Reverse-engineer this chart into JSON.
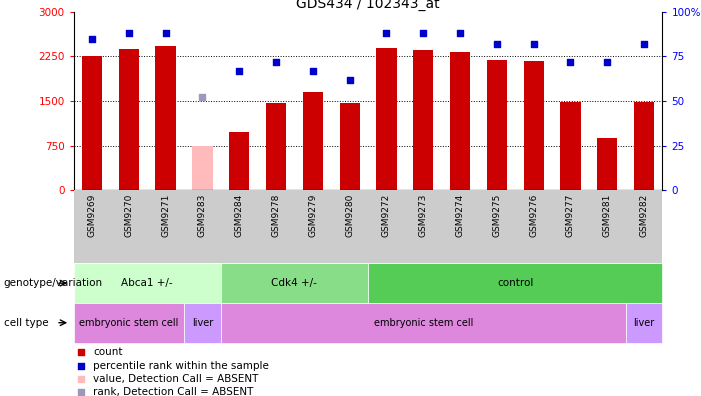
{
  "title": "GDS434 / 102343_at",
  "samples": [
    "GSM9269",
    "GSM9270",
    "GSM9271",
    "GSM9283",
    "GSM9284",
    "GSM9278",
    "GSM9279",
    "GSM9280",
    "GSM9272",
    "GSM9273",
    "GSM9274",
    "GSM9275",
    "GSM9276",
    "GSM9277",
    "GSM9281",
    "GSM9282"
  ],
  "bar_values": [
    2250,
    2380,
    2430,
    750,
    980,
    1470,
    1650,
    1470,
    2390,
    2350,
    2320,
    2190,
    2180,
    1490,
    870,
    1490
  ],
  "bar_absent": [
    false,
    false,
    false,
    true,
    false,
    false,
    false,
    false,
    false,
    false,
    false,
    false,
    false,
    false,
    false,
    false
  ],
  "rank_values": [
    85,
    88,
    88,
    52,
    67,
    72,
    67,
    62,
    88,
    88,
    88,
    82,
    82,
    72,
    72,
    82
  ],
  "rank_absent": [
    false,
    false,
    false,
    true,
    false,
    false,
    false,
    false,
    false,
    false,
    false,
    false,
    false,
    false,
    false,
    false
  ],
  "bar_color": "#cc0000",
  "bar_absent_color": "#ffbbbb",
  "rank_color": "#0000cc",
  "rank_absent_color": "#9999bb",
  "ylim_left": [
    0,
    3000
  ],
  "ylim_right": [
    0,
    100
  ],
  "yticks_left": [
    0,
    750,
    1500,
    2250,
    3000
  ],
  "yticks_right": [
    0,
    25,
    50,
    75,
    100
  ],
  "ytick_labels_left": [
    "0",
    "750",
    "1500",
    "2250",
    "3000"
  ],
  "ytick_labels_right": [
    "0",
    "25",
    "50",
    "75",
    "100%"
  ],
  "genotype_groups": [
    {
      "label": "Abca1 +/-",
      "start": 0,
      "end": 4,
      "color": "#ccffcc"
    },
    {
      "label": "Cdk4 +/-",
      "start": 4,
      "end": 8,
      "color": "#88dd88"
    },
    {
      "label": "control",
      "start": 8,
      "end": 16,
      "color": "#55cc55"
    }
  ],
  "celltype_groups": [
    {
      "label": "embryonic stem cell",
      "start": 0,
      "end": 3,
      "color": "#dd88dd"
    },
    {
      "label": "liver",
      "start": 3,
      "end": 4,
      "color": "#cc99ff"
    },
    {
      "label": "embryonic stem cell",
      "start": 4,
      "end": 15,
      "color": "#dd88dd"
    },
    {
      "label": "liver",
      "start": 15,
      "end": 16,
      "color": "#cc99ff"
    }
  ],
  "legend_items": [
    {
      "label": "count",
      "color": "#cc0000"
    },
    {
      "label": "percentile rank within the sample",
      "color": "#0000cc"
    },
    {
      "label": "value, Detection Call = ABSENT",
      "color": "#ffbbbb"
    },
    {
      "label": "rank, Detection Call = ABSENT",
      "color": "#9999bb"
    }
  ],
  "bar_width": 0.55,
  "rank_marker_size": 25,
  "title_fontsize": 10,
  "tick_label_fontsize": 7.5,
  "sample_fontsize": 6.5,
  "annotation_fontsize": 7.5,
  "legend_fontsize": 7.5
}
